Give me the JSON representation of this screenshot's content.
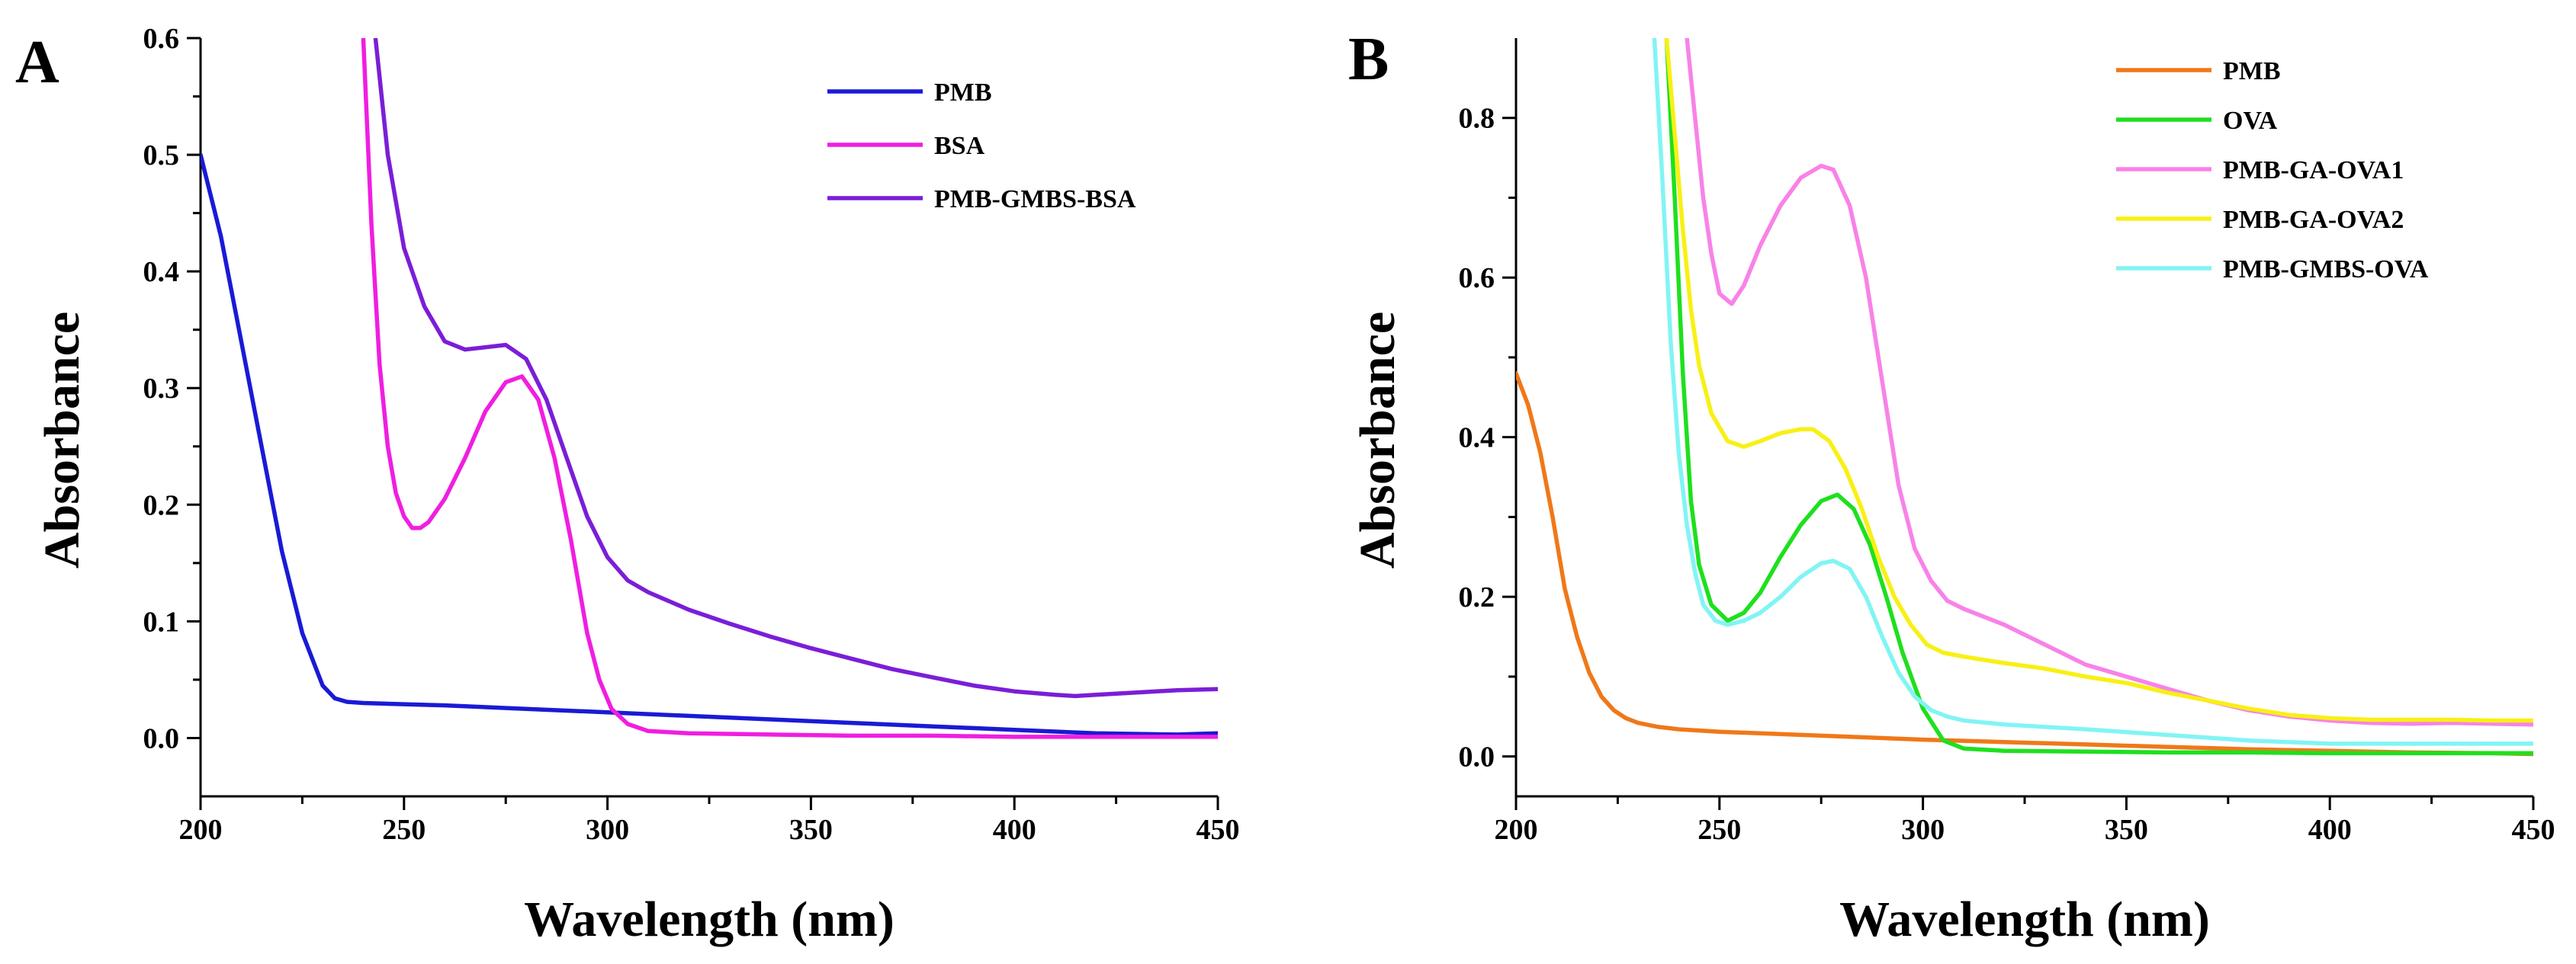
{
  "figure": {
    "panels": [
      {
        "id": "A",
        "label": "A"
      },
      {
        "id": "B",
        "label": "B"
      }
    ]
  },
  "chart_data": [
    {
      "panel": "A",
      "type": "line",
      "title": "",
      "xlabel": "Wavelength (nm)",
      "ylabel": "Absorbance",
      "xlim": [
        200,
        450
      ],
      "ylim": [
        -0.05,
        0.6
      ],
      "xticks": [
        200,
        250,
        300,
        350,
        400,
        450
      ],
      "yticks": [
        0.0,
        0.1,
        0.2,
        0.3,
        0.4,
        0.5,
        0.6
      ],
      "xtick_labels": [
        "200",
        "250",
        "300",
        "350",
        "400",
        "450"
      ],
      "ytick_labels": [
        "0.0",
        "0.1",
        "0.2",
        "0.3",
        "0.4",
        "0.5",
        "0.6"
      ],
      "legend_position": "top-right",
      "series": [
        {
          "name": "PMB",
          "color": "#1a1ad6",
          "x": [
            200,
            205,
            210,
            215,
            220,
            225,
            230,
            233,
            236,
            240,
            250,
            260,
            280,
            300,
            320,
            340,
            360,
            380,
            400,
            420,
            440,
            450
          ],
          "y": [
            0.5,
            0.43,
            0.34,
            0.25,
            0.16,
            0.09,
            0.045,
            0.034,
            0.031,
            0.03,
            0.029,
            0.028,
            0.025,
            0.022,
            0.019,
            0.016,
            0.013,
            0.01,
            0.007,
            0.004,
            0.003,
            0.004
          ]
        },
        {
          "name": "BSA",
          "color": "#f01ee0",
          "x": [
            240,
            242,
            244,
            246,
            248,
            250,
            252,
            254,
            256,
            260,
            265,
            270,
            275,
            279,
            283,
            287,
            291,
            295,
            298,
            301,
            305,
            310,
            320,
            340,
            360,
            380,
            400,
            420,
            450
          ],
          "y": [
            0.6,
            0.44,
            0.32,
            0.25,
            0.21,
            0.19,
            0.18,
            0.18,
            0.185,
            0.205,
            0.24,
            0.28,
            0.305,
            0.31,
            0.29,
            0.24,
            0.17,
            0.09,
            0.05,
            0.025,
            0.012,
            0.006,
            0.004,
            0.003,
            0.002,
            0.002,
            0.001,
            0.001,
            0.001
          ]
        },
        {
          "name": "PMB-GMBS-BSA",
          "color": "#7a1ed8",
          "x": [
            243,
            246,
            250,
            255,
            260,
            265,
            270,
            275,
            280,
            285,
            290,
            295,
            300,
            305,
            310,
            320,
            330,
            340,
            350,
            360,
            370,
            380,
            390,
            400,
            410,
            415,
            420,
            430,
            440,
            450
          ],
          "y": [
            0.6,
            0.5,
            0.42,
            0.37,
            0.34,
            0.333,
            0.335,
            0.337,
            0.325,
            0.29,
            0.24,
            0.19,
            0.155,
            0.135,
            0.125,
            0.11,
            0.098,
            0.087,
            0.077,
            0.068,
            0.059,
            0.052,
            0.045,
            0.04,
            0.037,
            0.036,
            0.037,
            0.039,
            0.041,
            0.042
          ]
        }
      ]
    },
    {
      "panel": "B",
      "type": "line",
      "title": "",
      "xlabel": "Wavelength (nm)",
      "ylabel": "Absorbance",
      "xlim": [
        200,
        450
      ],
      "ylim": [
        -0.05,
        0.9
      ],
      "xticks": [
        200,
        250,
        300,
        350,
        400,
        450
      ],
      "yticks": [
        0.0,
        0.2,
        0.4,
        0.6,
        0.8
      ],
      "xtick_labels": [
        "200",
        "250",
        "300",
        "350",
        "400",
        "450"
      ],
      "ytick_labels": [
        "0.0",
        "0.2",
        "0.4",
        "0.6",
        "0.8"
      ],
      "legend_position": "top-right",
      "series": [
        {
          "name": "PMB",
          "color": "#f07818",
          "x": [
            200,
            203,
            206,
            209,
            212,
            215,
            218,
            221,
            224,
            227,
            230,
            235,
            240,
            250,
            260,
            280,
            300,
            320,
            340,
            360,
            380,
            400,
            420,
            440,
            450
          ],
          "y": [
            0.48,
            0.44,
            0.38,
            0.3,
            0.21,
            0.15,
            0.105,
            0.075,
            0.058,
            0.048,
            0.042,
            0.037,
            0.034,
            0.031,
            0.029,
            0.025,
            0.021,
            0.018,
            0.015,
            0.012,
            0.009,
            0.007,
            0.005,
            0.004,
            0.003
          ]
        },
        {
          "name": "OVA",
          "color": "#1ee01e",
          "x": [
            237,
            239,
            241,
            243,
            245,
            248,
            252,
            256,
            260,
            265,
            270,
            275,
            279,
            283,
            287,
            291,
            295,
            300,
            305,
            310,
            320,
            340,
            360,
            380,
            400,
            420,
            450
          ],
          "y": [
            0.9,
            0.7,
            0.48,
            0.32,
            0.24,
            0.19,
            0.17,
            0.18,
            0.205,
            0.25,
            0.29,
            0.32,
            0.328,
            0.31,
            0.265,
            0.2,
            0.13,
            0.06,
            0.02,
            0.01,
            0.007,
            0.006,
            0.005,
            0.005,
            0.004,
            0.004,
            0.004
          ]
        },
        {
          "name": "PMB-GA-OVA1",
          "color": "#f882e8",
          "x": [
            242,
            244,
            246,
            248,
            250,
            253,
            256,
            260,
            265,
            270,
            275,
            278,
            282,
            286,
            290,
            294,
            298,
            302,
            306,
            310,
            320,
            330,
            340,
            350,
            360,
            370,
            380,
            390,
            400,
            410,
            420,
            430,
            440,
            450
          ],
          "y": [
            0.9,
            0.8,
            0.7,
            0.63,
            0.58,
            0.567,
            0.59,
            0.64,
            0.69,
            0.725,
            0.74,
            0.735,
            0.69,
            0.6,
            0.47,
            0.34,
            0.26,
            0.22,
            0.195,
            0.185,
            0.165,
            0.14,
            0.115,
            0.1,
            0.085,
            0.07,
            0.058,
            0.05,
            0.045,
            0.042,
            0.041,
            0.042,
            0.041,
            0.04
          ]
        },
        {
          "name": "PMB-GA-OVA2",
          "color": "#f8f014",
          "x": [
            237,
            239,
            241,
            243,
            245,
            248,
            252,
            256,
            260,
            265,
            270,
            273,
            277,
            281,
            285,
            289,
            293,
            297,
            301,
            305,
            310,
            320,
            330,
            340,
            350,
            360,
            370,
            380,
            390,
            400,
            410,
            420,
            430,
            440,
            450
          ],
          "y": [
            0.9,
            0.78,
            0.66,
            0.56,
            0.49,
            0.43,
            0.395,
            0.388,
            0.395,
            0.405,
            0.41,
            0.41,
            0.395,
            0.36,
            0.31,
            0.25,
            0.2,
            0.165,
            0.14,
            0.13,
            0.125,
            0.117,
            0.11,
            0.1,
            0.092,
            0.08,
            0.07,
            0.06,
            0.052,
            0.048,
            0.046,
            0.046,
            0.046,
            0.045,
            0.045
          ]
        },
        {
          "name": "PMB-GMBS-OVA",
          "color": "#82f4f4",
          "x": [
            234,
            236,
            238,
            240,
            242,
            244,
            246,
            249,
            252,
            256,
            260,
            265,
            270,
            275,
            278,
            282,
            286,
            290,
            294,
            298,
            302,
            306,
            310,
            320,
            340,
            360,
            380,
            400,
            420,
            450
          ],
          "y": [
            0.9,
            0.72,
            0.52,
            0.38,
            0.29,
            0.23,
            0.19,
            0.17,
            0.165,
            0.17,
            0.18,
            0.2,
            0.225,
            0.242,
            0.245,
            0.235,
            0.2,
            0.15,
            0.105,
            0.075,
            0.058,
            0.05,
            0.045,
            0.04,
            0.034,
            0.027,
            0.02,
            0.016,
            0.016,
            0.016
          ]
        }
      ]
    }
  ]
}
